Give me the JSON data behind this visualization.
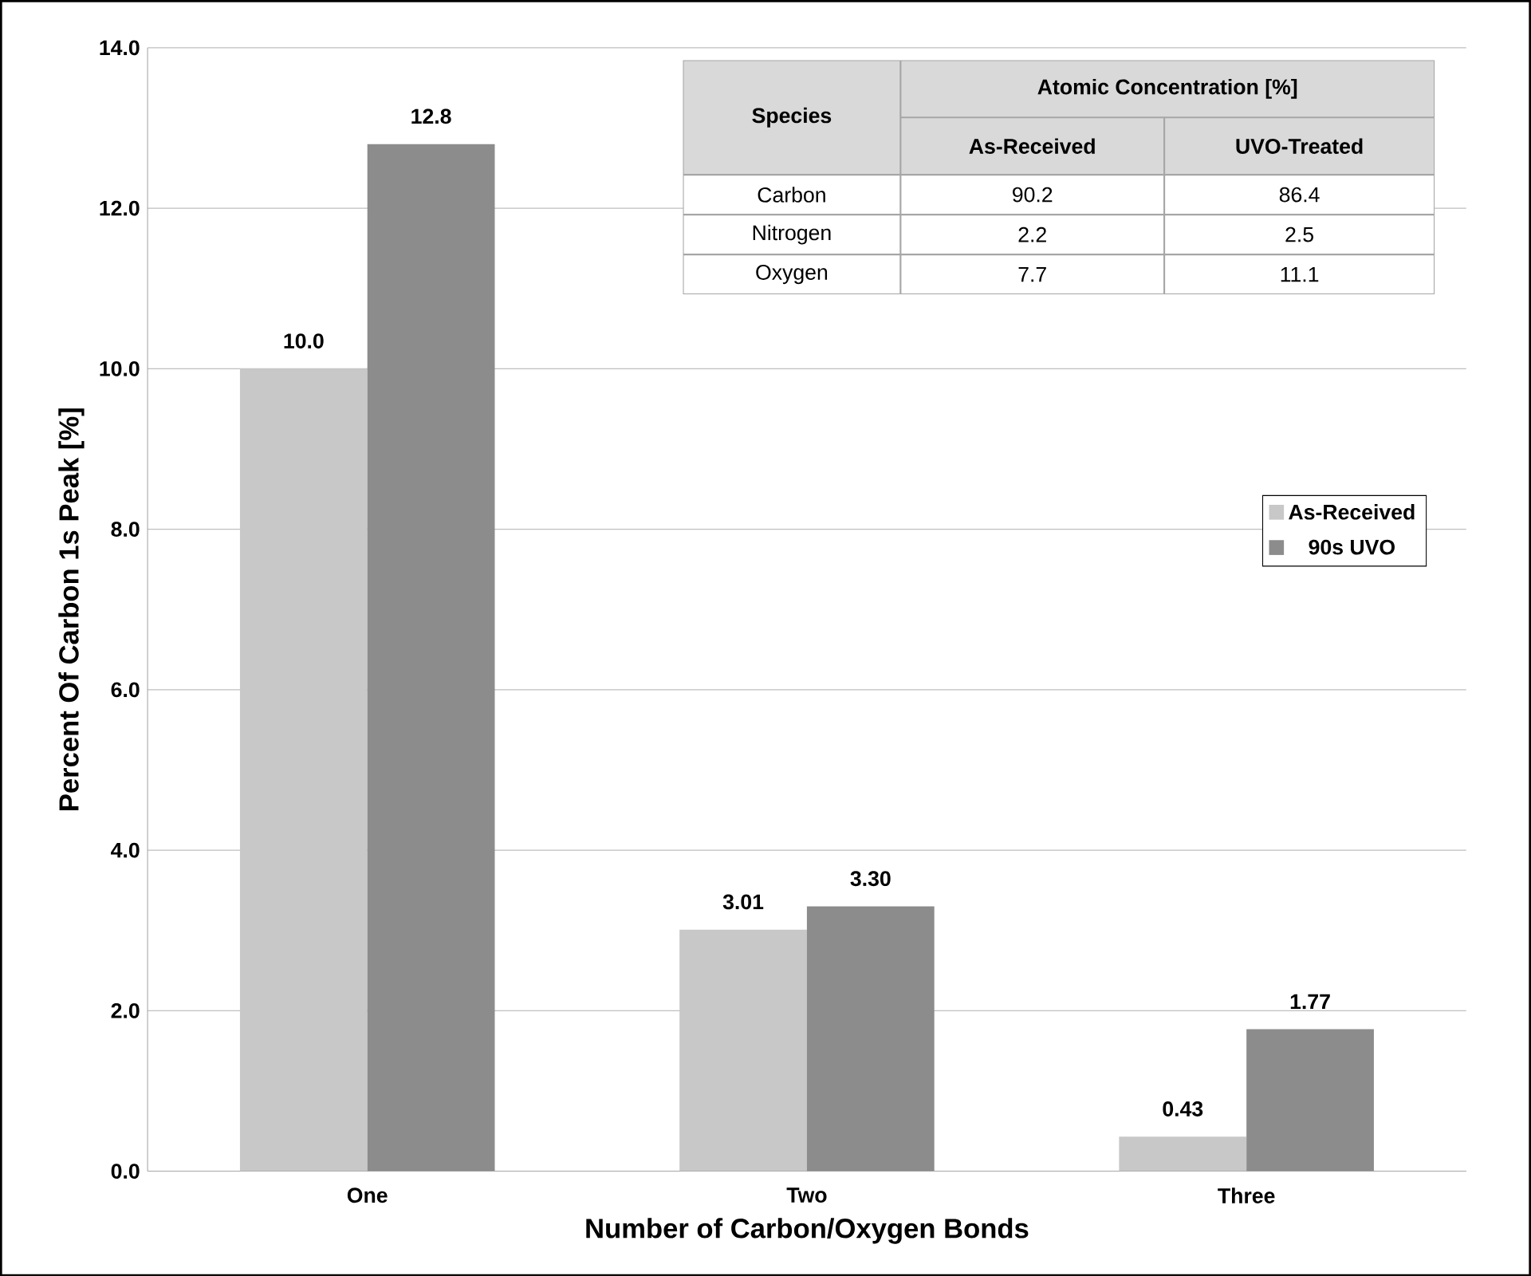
{
  "chart_data": {
    "type": "bar",
    "xlabel": "Number of Carbon/Oxygen Bonds",
    "ylabel": "Percent Of Carbon 1s Peak [%]",
    "categories": [
      "One",
      "Two",
      "Three"
    ],
    "series": [
      {
        "name": "As-Received",
        "color": "#c8c8c8",
        "values": [
          10.0,
          3.01,
          0.43
        ],
        "value_labels": [
          "10.0",
          "3.01",
          "0.43"
        ]
      },
      {
        "name": "90s UVO",
        "color": "#8c8c8c",
        "values": [
          12.8,
          3.3,
          1.77
        ],
        "value_labels": [
          "12.8",
          "3.30",
          "1.77"
        ]
      }
    ],
    "ylim": [
      0,
      14
    ],
    "yticks": [
      {
        "value": 0,
        "label": "0.0"
      },
      {
        "value": 2,
        "label": "2.0"
      },
      {
        "value": 4,
        "label": "4.0"
      },
      {
        "value": 6,
        "label": "6.0"
      },
      {
        "value": 8,
        "label": "8.0"
      },
      {
        "value": 10,
        "label": "10.0"
      },
      {
        "value": 12,
        "label": "12.0"
      },
      {
        "value": 14,
        "label": "14.0"
      }
    ],
    "grid": "y",
    "legend": "right",
    "annotations": [
      "Species",
      "Atomic Concentration [%]",
      "As-Received",
      "UVO-Treated",
      "Carbon",
      "90.2",
      "86.4",
      "Nitrogen",
      "2.2",
      "2.5",
      "Oxygen",
      "7.7",
      "11.1"
    ]
  }
}
